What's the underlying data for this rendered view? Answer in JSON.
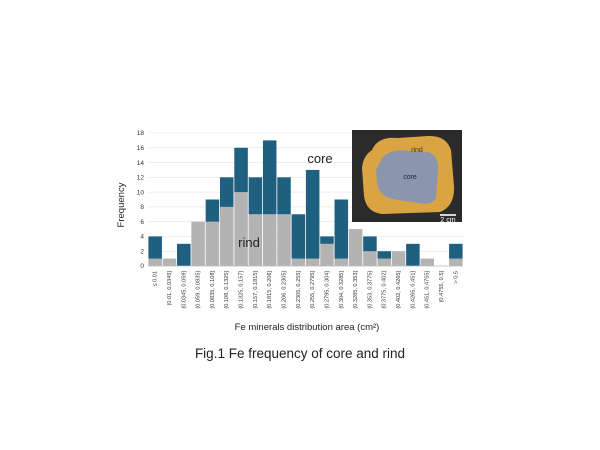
{
  "chart_data": {
    "type": "bar",
    "stacked": true,
    "xlabel": "Fe minerals distribution area (cm²)",
    "ylabel": "Frequency",
    "ylim": [
      0,
      18
    ],
    "yticks": [
      0,
      2,
      4,
      6,
      8,
      10,
      12,
      14,
      16,
      18
    ],
    "grid": true,
    "categories": [
      "≤ 0.01",
      "(0.01, 0.0345]",
      "(0.0345, 0.059]",
      "(0.059, 0.0835]",
      "(0.0835, 0.108]",
      "(0.108, 0.1325]",
      "(0.1325, 0.157]",
      "(0.157, 0.1815]",
      "(0.1815, 0.206]",
      "(0.206, 0.2305]",
      "(0.2305, 0.255]",
      "(0.255, 0.2795]",
      "(0.2795, 0.304]",
      "(0.304, 0.3285]",
      "(0.3285, 0.353]",
      "(0.353, 0.3775]",
      "(0.3775, 0.402]",
      "(0.402, 0.4265]",
      "(0.4265, 0.451]",
      "(0.451, 0.4755]",
      "(0.4755, 0.5]",
      "> 0.5"
    ],
    "series": [
      {
        "name": "rind",
        "color": "#b3b3b3",
        "values": [
          1,
          1,
          0,
          6,
          6,
          8,
          10,
          7,
          7,
          7,
          1,
          1,
          3,
          1,
          5,
          2,
          1,
          2,
          0,
          1,
          0,
          1
        ]
      },
      {
        "name": "core",
        "color": "#1f5f7f",
        "values": [
          3,
          0,
          3,
          0,
          3,
          4,
          6,
          5,
          10,
          5,
          6,
          12,
          1,
          8,
          0,
          2,
          1,
          0,
          3,
          0,
          0,
          2
        ]
      }
    ],
    "annotations": [
      "core",
      "rind"
    ]
  },
  "inset": {
    "labels": [
      "rind",
      "core",
      "2 cm"
    ]
  },
  "caption": "Fig.1 Fe frequency of core and rind"
}
